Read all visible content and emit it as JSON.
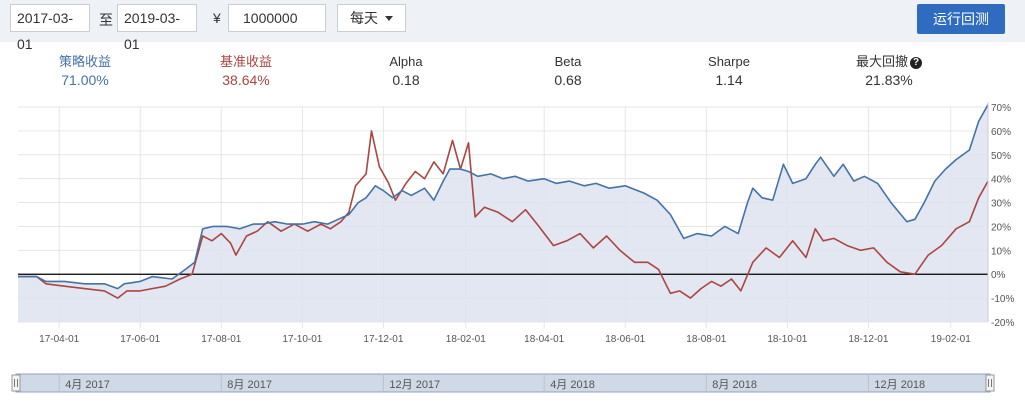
{
  "toolbar": {
    "start_date": "2017-03-01",
    "to_label": "至",
    "end_date": "2019-03-01",
    "currency_symbol": "¥",
    "capital": "1000000",
    "frequency": "每天",
    "run_button": "运行回测"
  },
  "stats": [
    {
      "label": "策略收益",
      "value": "71.00%",
      "color": "#4572a7"
    },
    {
      "label": "基准收益",
      "value": "38.64%",
      "color": "#aa4643"
    },
    {
      "label": "Alpha",
      "value": "0.18",
      "color": "#333333"
    },
    {
      "label": "Beta",
      "value": "0.68",
      "color": "#333333"
    },
    {
      "label": "Sharpe",
      "value": "1.14",
      "color": "#333333"
    },
    {
      "label": "最大回撤",
      "value": "21.83%",
      "color": "#333333"
    }
  ],
  "chart_data": {
    "type": "line",
    "ylim": [
      -20,
      70
    ],
    "y_ticks": [
      70,
      60,
      50,
      40,
      30,
      20,
      10,
      0,
      -10,
      -20
    ],
    "y_tick_labels": [
      "70%",
      "60%",
      "50%",
      "40%",
      "30%",
      "20%",
      "10%",
      "0%",
      "-10%",
      "-20%"
    ],
    "x_tick_labels": [
      "17-04-01",
      "17-06-01",
      "17-08-01",
      "17-10-01",
      "17-12-01",
      "18-02-01",
      "18-04-01",
      "18-06-01",
      "18-08-01",
      "18-10-01",
      "18-12-01",
      "19-02-01"
    ],
    "x_tick_dates": [
      "2017-04-01",
      "2017-06-01",
      "2017-08-01",
      "2017-10-01",
      "2017-12-01",
      "2018-02-01",
      "2018-04-01",
      "2018-06-01",
      "2018-08-01",
      "2018-10-01",
      "2018-12-01",
      "2019-02-01"
    ],
    "x_range": [
      "2017-03-01",
      "2019-03-01"
    ],
    "grid": true,
    "series": [
      {
        "name": "策略收益",
        "color": "#4572a7",
        "fill": true,
        "points": [
          [
            "2017-03-01",
            -1
          ],
          [
            "2017-03-15",
            -1
          ],
          [
            "2017-03-22",
            -3
          ],
          [
            "2017-04-05",
            -3
          ],
          [
            "2017-04-20",
            -4
          ],
          [
            "2017-05-05",
            -4
          ],
          [
            "2017-05-15",
            -6
          ],
          [
            "2017-05-20",
            -4
          ],
          [
            "2017-06-01",
            -3
          ],
          [
            "2017-06-10",
            -1
          ],
          [
            "2017-06-25",
            -2
          ],
          [
            "2017-07-05",
            2
          ],
          [
            "2017-07-12",
            5
          ],
          [
            "2017-07-18",
            19
          ],
          [
            "2017-07-26",
            20
          ],
          [
            "2017-08-05",
            20
          ],
          [
            "2017-08-15",
            19
          ],
          [
            "2017-08-25",
            21
          ],
          [
            "2017-09-01",
            21
          ],
          [
            "2017-09-10",
            22
          ],
          [
            "2017-09-20",
            21
          ],
          [
            "2017-10-01",
            21
          ],
          [
            "2017-10-10",
            22
          ],
          [
            "2017-10-20",
            21
          ],
          [
            "2017-10-28",
            23
          ],
          [
            "2017-11-05",
            25
          ],
          [
            "2017-11-12",
            30
          ],
          [
            "2017-11-18",
            32
          ],
          [
            "2017-11-25",
            37
          ],
          [
            "2017-12-01",
            35
          ],
          [
            "2017-12-08",
            32
          ],
          [
            "2017-12-15",
            35
          ],
          [
            "2017-12-22",
            33
          ],
          [
            "2018-01-01",
            36
          ],
          [
            "2018-01-08",
            31
          ],
          [
            "2018-01-15",
            39
          ],
          [
            "2018-01-20",
            44
          ],
          [
            "2018-01-28",
            44
          ],
          [
            "2018-02-03",
            43
          ],
          [
            "2018-02-10",
            41
          ],
          [
            "2018-02-20",
            42
          ],
          [
            "2018-03-01",
            40
          ],
          [
            "2018-03-10",
            41
          ],
          [
            "2018-03-20",
            39
          ],
          [
            "2018-04-01",
            40
          ],
          [
            "2018-04-10",
            38
          ],
          [
            "2018-04-20",
            39
          ],
          [
            "2018-05-01",
            37
          ],
          [
            "2018-05-10",
            38
          ],
          [
            "2018-05-20",
            36
          ],
          [
            "2018-06-01",
            37
          ],
          [
            "2018-06-15",
            34
          ],
          [
            "2018-06-25",
            31
          ],
          [
            "2018-07-05",
            25
          ],
          [
            "2018-07-15",
            15
          ],
          [
            "2018-07-25",
            17
          ],
          [
            "2018-08-05",
            16
          ],
          [
            "2018-08-15",
            20
          ],
          [
            "2018-08-25",
            17
          ],
          [
            "2018-09-01",
            30
          ],
          [
            "2018-09-05",
            36
          ],
          [
            "2018-09-12",
            32
          ],
          [
            "2018-09-20",
            31
          ],
          [
            "2018-09-28",
            46
          ],
          [
            "2018-10-05",
            38
          ],
          [
            "2018-10-15",
            40
          ],
          [
            "2018-10-22",
            46
          ],
          [
            "2018-10-26",
            49
          ],
          [
            "2018-11-05",
            41
          ],
          [
            "2018-11-12",
            46
          ],
          [
            "2018-11-20",
            39
          ],
          [
            "2018-11-28",
            41
          ],
          [
            "2018-12-08",
            38
          ],
          [
            "2018-12-18",
            30
          ],
          [
            "2018-12-30",
            22
          ],
          [
            "2019-01-05",
            23
          ],
          [
            "2019-01-12",
            30
          ],
          [
            "2019-01-20",
            39
          ],
          [
            "2019-01-28",
            44
          ],
          [
            "2019-02-05",
            48
          ],
          [
            "2019-02-15",
            52
          ],
          [
            "2019-02-22",
            64
          ],
          [
            "2019-03-01",
            71
          ]
        ]
      },
      {
        "name": "基准收益",
        "color": "#aa4643",
        "fill": false,
        "points": [
          [
            "2017-03-01",
            -1
          ],
          [
            "2017-03-15",
            -1
          ],
          [
            "2017-03-22",
            -4
          ],
          [
            "2017-04-05",
            -5
          ],
          [
            "2017-04-20",
            -6
          ],
          [
            "2017-05-05",
            -7
          ],
          [
            "2017-05-15",
            -10
          ],
          [
            "2017-05-22",
            -7
          ],
          [
            "2017-06-01",
            -7
          ],
          [
            "2017-06-10",
            -6
          ],
          [
            "2017-06-20",
            -5
          ],
          [
            "2017-07-01",
            -2
          ],
          [
            "2017-07-10",
            0
          ],
          [
            "2017-07-18",
            16
          ],
          [
            "2017-07-25",
            14
          ],
          [
            "2017-08-01",
            17
          ],
          [
            "2017-08-08",
            13
          ],
          [
            "2017-08-12",
            8
          ],
          [
            "2017-08-20",
            16
          ],
          [
            "2017-08-28",
            18
          ],
          [
            "2017-09-05",
            22
          ],
          [
            "2017-09-15",
            18
          ],
          [
            "2017-09-25",
            21
          ],
          [
            "2017-10-05",
            18
          ],
          [
            "2017-10-15",
            21
          ],
          [
            "2017-10-22",
            19
          ],
          [
            "2017-10-30",
            22
          ],
          [
            "2017-11-05",
            26
          ],
          [
            "2017-11-10",
            37
          ],
          [
            "2017-11-18",
            42
          ],
          [
            "2017-11-22",
            60
          ],
          [
            "2017-11-28",
            45
          ],
          [
            "2017-12-05",
            38
          ],
          [
            "2017-12-10",
            31
          ],
          [
            "2017-12-18",
            38
          ],
          [
            "2017-12-25",
            43
          ],
          [
            "2018-01-01",
            40
          ],
          [
            "2018-01-08",
            47
          ],
          [
            "2018-01-15",
            42
          ],
          [
            "2018-01-22",
            56
          ],
          [
            "2018-01-28",
            44
          ],
          [
            "2018-02-03",
            55
          ],
          [
            "2018-02-08",
            24
          ],
          [
            "2018-02-15",
            28
          ],
          [
            "2018-02-25",
            26
          ],
          [
            "2018-03-08",
            22
          ],
          [
            "2018-03-18",
            27
          ],
          [
            "2018-03-28",
            20
          ],
          [
            "2018-04-08",
            12
          ],
          [
            "2018-04-18",
            14
          ],
          [
            "2018-04-28",
            17
          ],
          [
            "2018-05-08",
            11
          ],
          [
            "2018-05-18",
            16
          ],
          [
            "2018-05-28",
            10
          ],
          [
            "2018-06-08",
            5
          ],
          [
            "2018-06-18",
            5
          ],
          [
            "2018-06-26",
            2
          ],
          [
            "2018-07-05",
            -8
          ],
          [
            "2018-07-12",
            -7
          ],
          [
            "2018-07-20",
            -10
          ],
          [
            "2018-07-28",
            -6
          ],
          [
            "2018-08-05",
            -3
          ],
          [
            "2018-08-12",
            -5
          ],
          [
            "2018-08-20",
            -2
          ],
          [
            "2018-08-27",
            -7
          ],
          [
            "2018-09-05",
            5
          ],
          [
            "2018-09-15",
            11
          ],
          [
            "2018-09-25",
            7
          ],
          [
            "2018-10-05",
            14
          ],
          [
            "2018-10-15",
            7
          ],
          [
            "2018-10-22",
            19
          ],
          [
            "2018-10-28",
            14
          ],
          [
            "2018-11-05",
            15
          ],
          [
            "2018-11-15",
            12
          ],
          [
            "2018-11-25",
            10
          ],
          [
            "2018-12-05",
            11
          ],
          [
            "2018-12-15",
            5
          ],
          [
            "2018-12-25",
            1
          ],
          [
            "2019-01-05",
            0
          ],
          [
            "2019-01-15",
            8
          ],
          [
            "2019-01-25",
            12
          ],
          [
            "2019-02-05",
            19
          ],
          [
            "2019-02-15",
            22
          ],
          [
            "2019-02-22",
            32
          ],
          [
            "2019-03-01",
            39
          ]
        ]
      }
    ],
    "zero_line_color": "#000000"
  },
  "navigator": {
    "labels": [
      "4月 2017",
      "8月 2017",
      "12月 2017",
      "4月 2018",
      "8月 2018",
      "12月 2018"
    ],
    "label_dates": [
      "2017-04-01",
      "2017-08-01",
      "2017-12-01",
      "2018-04-01",
      "2018-08-01",
      "2018-12-01"
    ]
  }
}
